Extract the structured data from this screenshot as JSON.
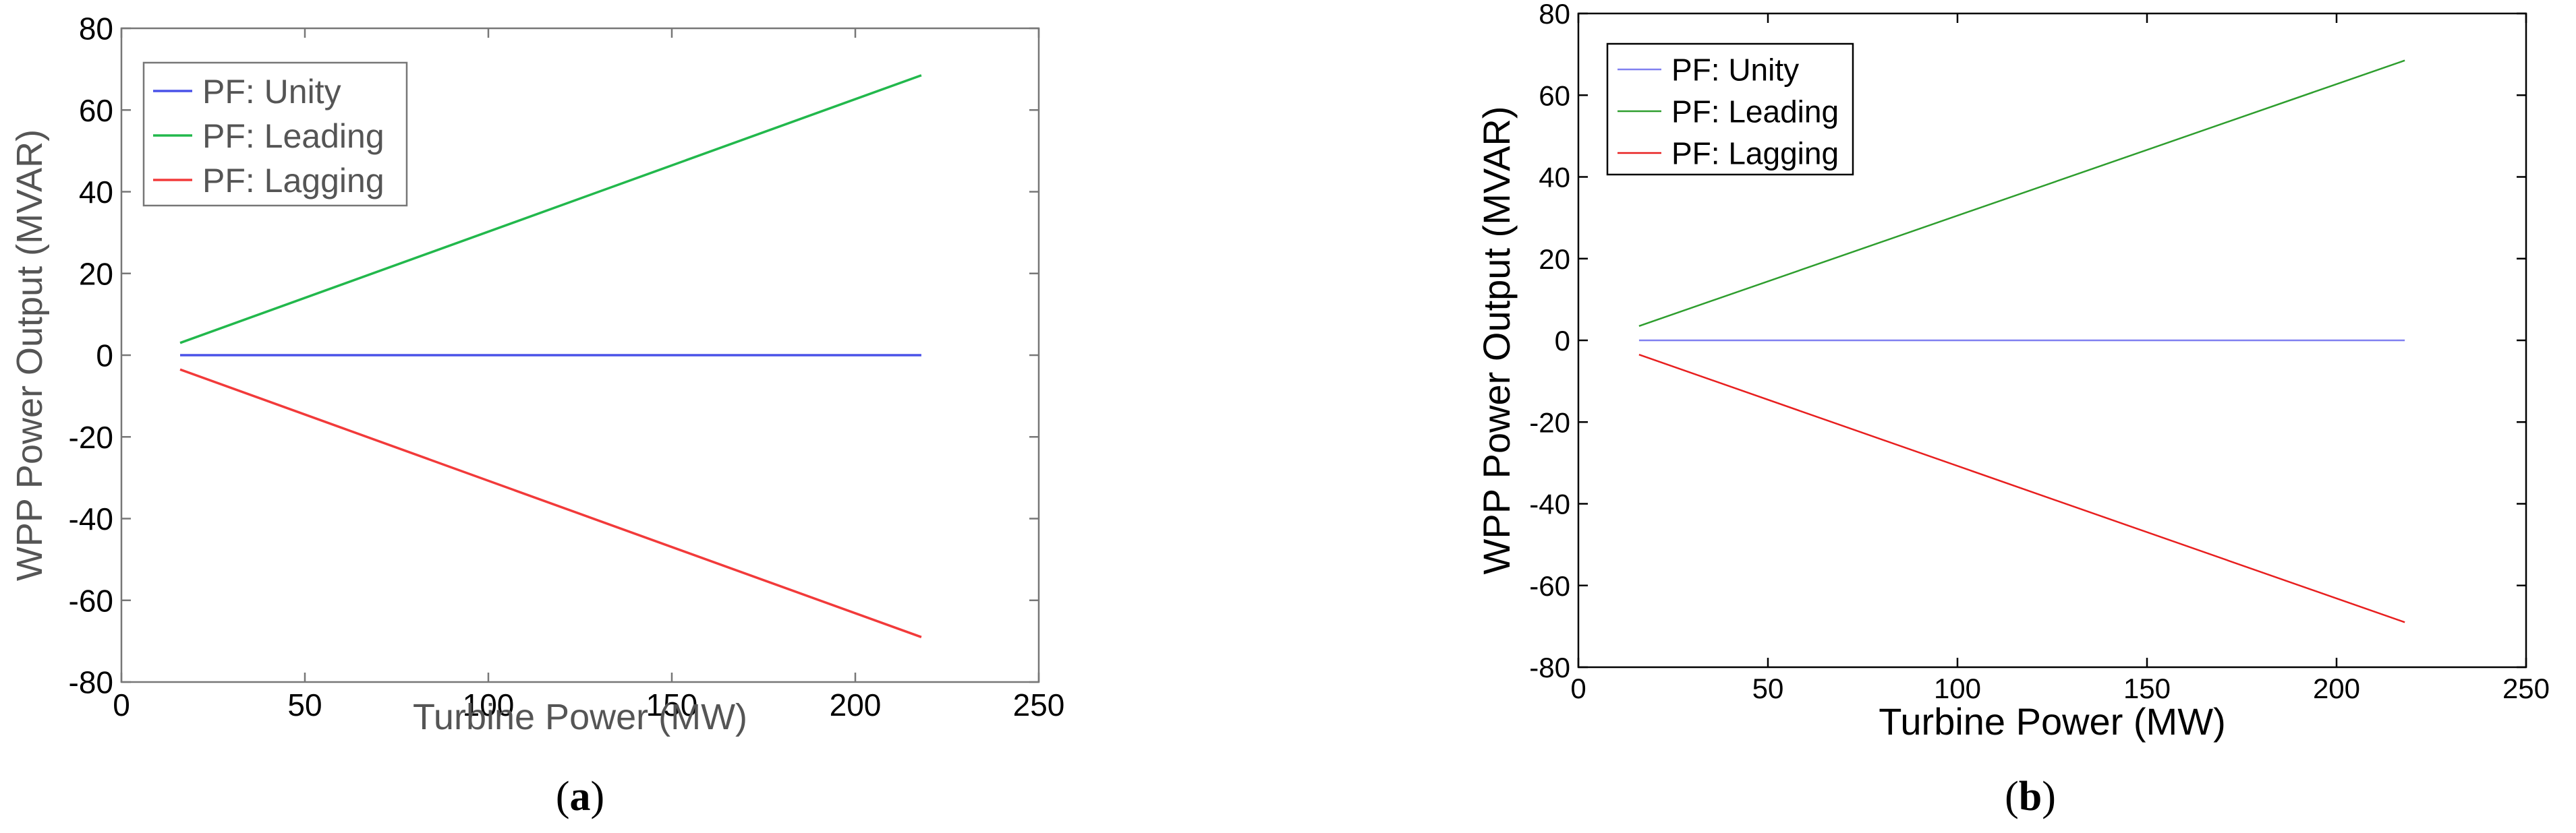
{
  "chart_data": [
    {
      "type": "line",
      "caption": "(a)",
      "caption_letter": "a",
      "xlabel": "Turbine Power (MW)",
      "ylabel": "WPP Power Output (MVAR)",
      "xlim": [
        0,
        250
      ],
      "ylim": [
        -80,
        80
      ],
      "xticks": [
        "0",
        "50",
        "100",
        "150",
        "200",
        "250"
      ],
      "yticks": [
        "80",
        "60",
        "40",
        "20",
        "0",
        "-20",
        "-40",
        "-60",
        "-80"
      ],
      "grid": false,
      "legend_placement": "top-left",
      "text_color": "#555555",
      "series": [
        {
          "name": "PF: Unity",
          "color": "#4a52e8",
          "x": [
            16,
            218
          ],
          "y": [
            0,
            0
          ]
        },
        {
          "name": "PF: Leading",
          "color": "#22b84c",
          "x": [
            16,
            218
          ],
          "y": [
            3,
            68.5
          ]
        },
        {
          "name": "PF: Lagging",
          "color": "#f23a3a",
          "x": [
            16,
            218
          ],
          "y": [
            -3.5,
            -69
          ]
        }
      ]
    },
    {
      "type": "line",
      "caption": "(b)",
      "caption_letter": "b",
      "xlabel": "Turbine Power (MW)",
      "ylabel": "WPP Power Output (MVAR)",
      "xlim": [
        0,
        250
      ],
      "ylim": [
        -80,
        80
      ],
      "xticks": [
        "0",
        "50",
        "100",
        "150",
        "200",
        "250"
      ],
      "yticks": [
        "80",
        "60",
        "40",
        "20",
        "0",
        "-20",
        "-40",
        "-60",
        "-80"
      ],
      "grid": false,
      "legend_placement": "top-left",
      "text_color": "#000000",
      "series": [
        {
          "name": "PF: Unity",
          "color": "#8080f0",
          "x": [
            16,
            218
          ],
          "y": [
            0,
            0
          ]
        },
        {
          "name": "PF: Leading",
          "color": "#2e9e2e",
          "x": [
            16,
            218
          ],
          "y": [
            3.5,
            68.5
          ]
        },
        {
          "name": "PF: Lagging",
          "color": "#e81f1f",
          "x": [
            16,
            218
          ],
          "y": [
            -3.5,
            -69
          ]
        }
      ]
    }
  ]
}
